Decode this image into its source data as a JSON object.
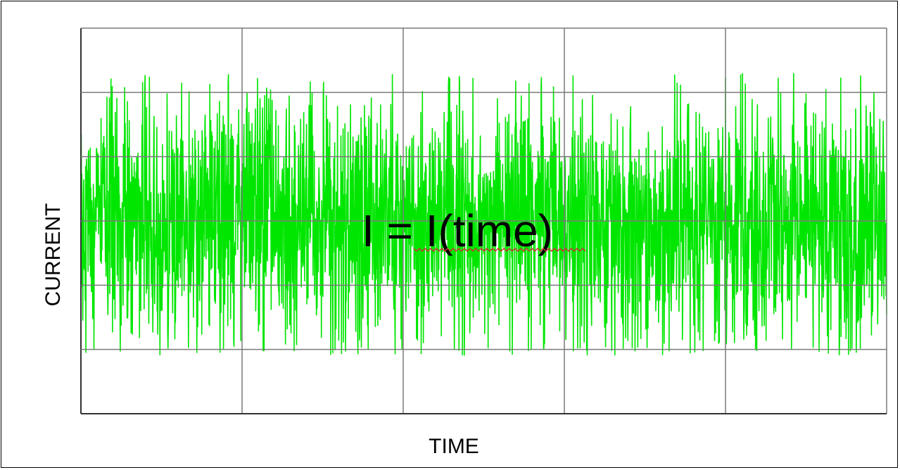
{
  "chart_data": {
    "type": "line",
    "title": "",
    "xlabel": "TIME",
    "ylabel": "CURRENT",
    "annotation": "I = I(time)",
    "grid": true,
    "grid_divisions": {
      "x": 5,
      "y": 6
    },
    "legend": "none",
    "ylim": [
      -3,
      3
    ],
    "signal": {
      "description_visible": false,
      "distribution": "random noise",
      "mean": 0,
      "amplitude_range": [
        -2.1,
        2.3
      ],
      "color": "#00e600"
    }
  },
  "colors": {
    "signal": "#00e600",
    "grid": "#7a7a7a",
    "background": "#ffffff",
    "text": "#000000",
    "spellcheck_underline": "#cc3333"
  }
}
